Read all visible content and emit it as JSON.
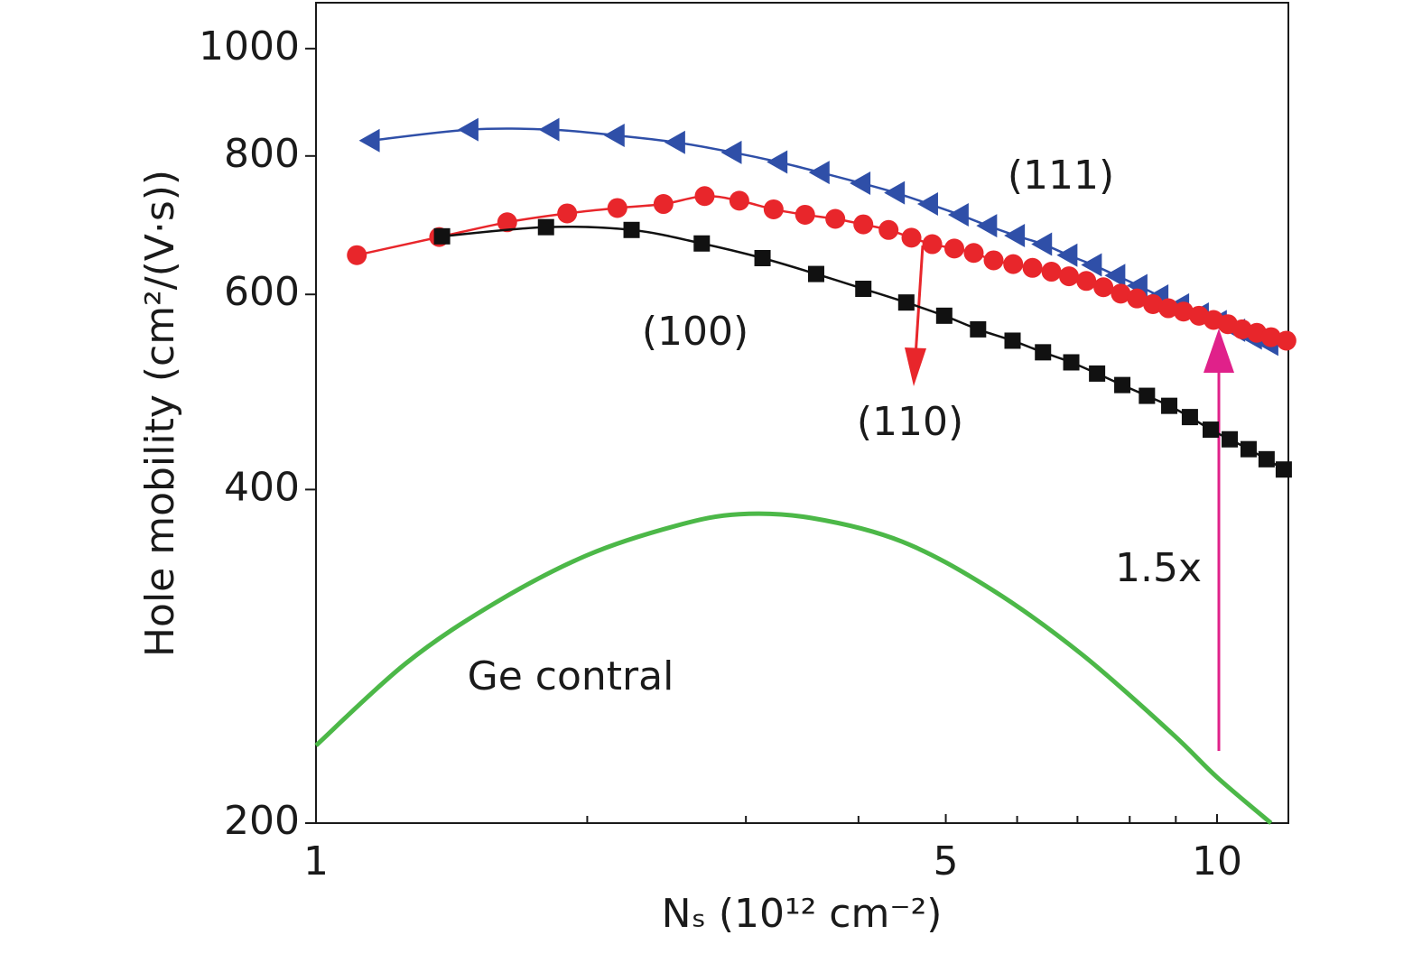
{
  "chart_data": {
    "type": "line",
    "xlabel": "Nₛ (10¹² cm⁻²)",
    "ylabel": "Hole mobility (cm²/(V·s))",
    "xscale": "log",
    "yscale": "log",
    "xlim": [
      1,
      12
    ],
    "ylim": [
      200,
      1100
    ],
    "xticks": [
      1,
      5,
      10
    ],
    "xminorticks": [
      2,
      3,
      4,
      6,
      7,
      8,
      9
    ],
    "yticks": [
      200,
      400,
      600,
      800,
      1000
    ],
    "series": [
      {
        "name": "(111)",
        "color": "#2f4fa8",
        "marker": "triangle-left",
        "x": [
          1.15,
          1.48,
          1.82,
          2.15,
          2.51,
          2.9,
          3.26,
          3.63,
          4.03,
          4.4,
          4.79,
          5.18,
          5.57,
          5.98,
          6.41,
          6.84,
          7.28,
          7.73,
          8.18,
          8.63,
          9.1,
          9.57,
          10.02,
          10.5,
          10.96,
          11.43
        ],
        "values": [
          826,
          845,
          845,
          835,
          823,
          806,
          790,
          773,
          756,
          741,
          724,
          708,
          692,
          678,
          666,
          651,
          638,
          624,
          611,
          598,
          587,
          576,
          567,
          557,
          548,
          541
        ]
      },
      {
        "name": "(110)",
        "color": "#e8262b",
        "marker": "circle",
        "x": [
          1.11,
          1.37,
          1.63,
          1.9,
          2.16,
          2.43,
          2.7,
          2.95,
          3.22,
          3.49,
          3.77,
          4.05,
          4.32,
          4.58,
          4.83,
          5.11,
          5.37,
          5.65,
          5.94,
          6.24,
          6.55,
          6.85,
          7.16,
          7.48,
          7.82,
          8.15,
          8.49,
          8.83,
          9.18,
          9.55,
          9.91,
          10.28,
          10.66,
          11.07,
          11.48,
          11.94
        ],
        "values": [
          651,
          676,
          697,
          710,
          718,
          724,
          736,
          729,
          716,
          708,
          702,
          694,
          686,
          675,
          666,
          660,
          654,
          644,
          639,
          634,
          629,
          623,
          617,
          609,
          601,
          595,
          588,
          583,
          579,
          574,
          569,
          564,
          558,
          554,
          549,
          545
        ]
      },
      {
        "name": "(100)",
        "color": "#111111",
        "marker": "square",
        "x": [
          1.38,
          1.8,
          2.24,
          2.68,
          3.13,
          3.59,
          4.05,
          4.52,
          4.98,
          5.43,
          5.93,
          6.41,
          6.89,
          7.36,
          7.85,
          8.36,
          8.85,
          9.33,
          9.84,
          10.33,
          10.84,
          11.35,
          11.86
        ],
        "values": [
          677,
          690,
          686,
          667,
          647,
          626,
          607,
          590,
          574,
          558,
          545,
          532,
          521,
          509,
          497,
          486,
          476,
          465,
          453,
          444,
          435,
          426,
          417
        ]
      },
      {
        "name": "Ge contral",
        "color": "#4cb848",
        "marker": "none",
        "x": [
          1,
          1.26,
          1.58,
          2.0,
          2.51,
          2.95,
          3.55,
          4.47,
          5.62,
          7.08,
          8.91,
          10,
          11.48
        ],
        "values": [
          235,
          279,
          316,
          349,
          371,
          380,
          377,
          359,
          325,
          284,
          241,
          220,
          200
        ]
      }
    ],
    "annotations": [
      {
        "text": "1.5x",
        "color": "#e0218a"
      }
    ]
  }
}
